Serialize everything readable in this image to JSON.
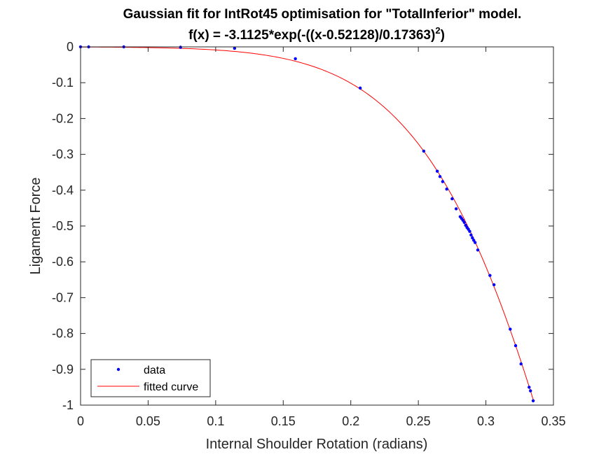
{
  "chart_data": {
    "type": "scatter",
    "title": "Gaussian fit for IntRot45 optimisation for \"TotalInferior\" model.",
    "subtitle_prefix": "f(x) = -3.1125*exp(-((x-0.52128)/0.17363)",
    "subtitle_exponent": "2",
    "subtitle_suffix": ")",
    "xlabel": "Internal Shoulder Rotation (radians)",
    "ylabel": "Ligament Force",
    "xlim": [
      0,
      0.35
    ],
    "ylim": [
      -1,
      0
    ],
    "xticks": [
      0,
      0.05,
      0.1,
      0.15,
      0.2,
      0.25,
      0.3,
      0.35
    ],
    "xtick_labels": [
      "0",
      "0.05",
      "0.1",
      "0.15",
      "0.2",
      "0.25",
      "0.3",
      "0.35"
    ],
    "yticks": [
      0,
      -0.1,
      -0.2,
      -0.3,
      -0.4,
      -0.5,
      -0.6,
      -0.7,
      -0.8,
      -0.9,
      -1
    ],
    "ytick_labels": [
      "0",
      "-0.1",
      "-0.2",
      "-0.3",
      "-0.4",
      "-0.5",
      "-0.6",
      "-0.7",
      "-0.8",
      "-0.9",
      "-1"
    ],
    "grid": false,
    "legend_position": "bottom-left",
    "fit": {
      "a": -3.1125,
      "b": 0.52128,
      "c": 0.17363
    },
    "series": [
      {
        "name": "data",
        "kind": "points",
        "color": "#0000ff",
        "x": [
          0.0,
          0.006,
          0.032,
          0.074,
          0.114,
          0.159,
          0.207,
          0.254,
          0.264,
          0.266,
          0.268,
          0.271,
          0.275,
          0.278,
          0.281,
          0.282,
          0.283,
          0.284,
          0.285,
          0.286,
          0.287,
          0.288,
          0.289,
          0.29,
          0.291,
          0.292,
          0.294,
          0.303,
          0.306,
          0.318,
          0.322,
          0.326,
          0.332,
          0.333,
          0.335
        ],
        "y": [
          0.0,
          0.0,
          0.0,
          -0.001,
          -0.004,
          -0.033,
          -0.115,
          -0.291,
          -0.347,
          -0.362,
          -0.376,
          -0.397,
          -0.424,
          -0.452,
          -0.474,
          -0.479,
          -0.484,
          -0.49,
          -0.498,
          -0.504,
          -0.509,
          -0.515,
          -0.525,
          -0.533,
          -0.54,
          -0.546,
          -0.567,
          -0.638,
          -0.664,
          -0.788,
          -0.834,
          -0.885,
          -0.95,
          -0.96,
          -0.988
        ]
      },
      {
        "name": "fitted curve",
        "kind": "line",
        "color": "#ff0000"
      }
    ]
  }
}
